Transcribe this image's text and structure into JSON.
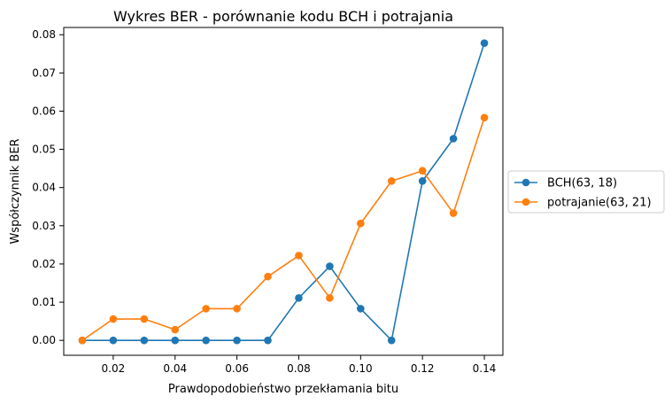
{
  "chart_data": {
    "type": "line",
    "title": "Wykres BER - porównanie kodu BCH i potrajania",
    "xlabel": "Prawdopodobieństwo przekłamania bitu",
    "ylabel": "Współczynnik BER",
    "xlim": [
      0.004,
      0.146
    ],
    "ylim": [
      -0.0039,
      0.0819
    ],
    "xticks": [
      0.02,
      0.04,
      0.06,
      0.08,
      0.1,
      0.12,
      0.14
    ],
    "xtick_labels": [
      "0.02",
      "0.04",
      "0.06",
      "0.08",
      "0.10",
      "0.12",
      "0.14"
    ],
    "yticks": [
      0.0,
      0.01,
      0.02,
      0.03,
      0.04,
      0.05,
      0.06,
      0.07,
      0.08
    ],
    "ytick_labels": [
      "0.00",
      "0.01",
      "0.02",
      "0.03",
      "0.04",
      "0.05",
      "0.06",
      "0.07",
      "0.08"
    ],
    "grid": false,
    "legend_position": "outside-right",
    "x": [
      0.01,
      0.02,
      0.03,
      0.04,
      0.05,
      0.06,
      0.07,
      0.08,
      0.09,
      0.1,
      0.11,
      0.12,
      0.13,
      0.14
    ],
    "series": [
      {
        "name": "BCH(63, 18)",
        "color": "#1f77b4",
        "values": [
          0.0,
          0.0,
          0.0,
          0.0,
          0.0,
          0.0,
          0.0,
          0.0111,
          0.0194,
          0.0083,
          0.0,
          0.0417,
          0.0528,
          0.0778
        ]
      },
      {
        "name": "potrajanie(63, 21)",
        "color": "#ff7f0e",
        "values": [
          0.0,
          0.0056,
          0.0056,
          0.0028,
          0.0083,
          0.0083,
          0.0167,
          0.0222,
          0.0111,
          0.0306,
          0.0417,
          0.0444,
          0.0333,
          0.0583
        ]
      }
    ]
  }
}
